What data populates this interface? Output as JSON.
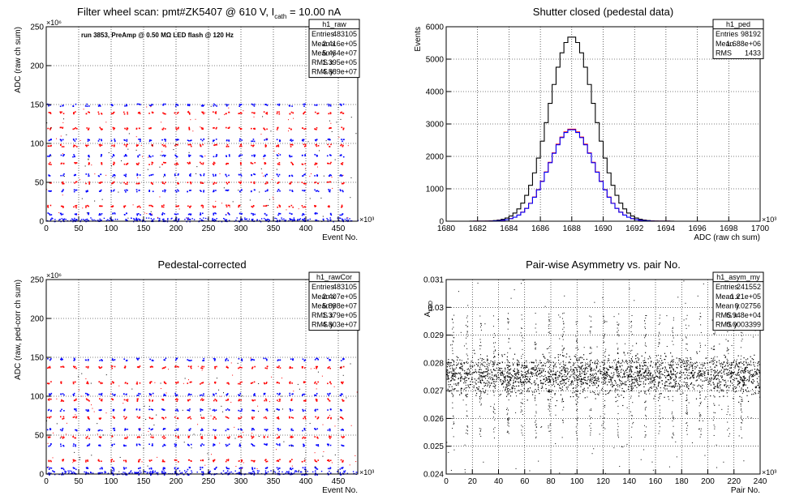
{
  "chart_data": [
    {
      "id": "raw",
      "type": "scatter",
      "title": "Filter wheel scan: pmt#ZK5407 @   610 V, I",
      "title_sub": "cath",
      "title_tail": " = 10.00 nA",
      "annotation": "run 3853, PreAmp @ 0.50 MΩ LED flash @  120 Hz",
      "xlabel": "Event No.",
      "ylabel": "ADC (raw ch sum)",
      "x_exponent": "×10³",
      "y_exponent": "×10⁶",
      "xlim": [
        0,
        480
      ],
      "ylim": [
        0,
        250
      ],
      "x_ticks": [
        "0",
        "50",
        "100",
        "150",
        "200",
        "250",
        "300",
        "350",
        "400",
        "450"
      ],
      "y_ticks": [
        "0",
        "50",
        "100",
        "150",
        "200",
        "250"
      ],
      "grid": true,
      "levels": [
        150,
        140,
        120,
        105,
        98,
        85,
        75,
        60,
        50,
        40,
        20,
        10,
        2
      ],
      "stats": {
        "title": "h1_raw",
        "rows": [
          [
            "Entries",
            "483105"
          ],
          [
            "Mean x",
            "2.416e+05"
          ],
          [
            "Mean y",
            "5.464e+07"
          ],
          [
            "RMS x",
            "1.395e+05"
          ],
          [
            "RMS y",
            "4.889e+07"
          ]
        ]
      }
    },
    {
      "id": "ped",
      "type": "line",
      "title": "Shutter closed (pedestal data)",
      "xlabel": "ADC (raw ch sum)",
      "ylabel": "Events",
      "x_exponent": "×10³",
      "xlim": [
        1680,
        1700
      ],
      "ylim": [
        0,
        6000
      ],
      "x_ticks": [
        "1680",
        "1682",
        "1684",
        "1686",
        "1688",
        "1690",
        "1692",
        "1694",
        "1696",
        "1698",
        "1700"
      ],
      "y_ticks": [
        "0",
        "1000",
        "2000",
        "3000",
        "4000",
        "5000",
        "6000"
      ],
      "grid": true,
      "series": [
        {
          "color": "#000000",
          "mean": 1688.0,
          "sigma": 1.45,
          "peak": 5700
        },
        {
          "color": "#ff0000",
          "mean": 1688.0,
          "sigma": 1.45,
          "peak": 2850
        },
        {
          "color": "#0000ff",
          "mean": 1688.0,
          "sigma": 1.45,
          "peak": 2830
        }
      ],
      "stats": {
        "title": "h1_ped",
        "rows": [
          [
            "Entries",
            "98192"
          ],
          [
            "Mean",
            "1.688e+06"
          ],
          [
            "RMS",
            "1433"
          ]
        ]
      }
    },
    {
      "id": "rawcor",
      "type": "scatter",
      "title": "Pedestal-corrected",
      "xlabel": "Event No.",
      "ylabel": "ADC (raw, ped-corr ch sum)",
      "x_exponent": "×10³",
      "y_exponent": "×10⁶",
      "xlim": [
        0,
        480
      ],
      "ylim": [
        0,
        250
      ],
      "x_ticks": [
        "0",
        "50",
        "100",
        "150",
        "200",
        "250",
        "300",
        "350",
        "400",
        "450"
      ],
      "y_ticks": [
        "0",
        "50",
        "100",
        "150",
        "200",
        "250"
      ],
      "grid": true,
      "levels": [
        148,
        138,
        118,
        103,
        96,
        83,
        73,
        58,
        48,
        38,
        18,
        8,
        1
      ],
      "stats": {
        "title": "h1_rawCor",
        "rows": [
          [
            "Entries",
            "483105"
          ],
          [
            "Mean x",
            "2.407e+05"
          ],
          [
            "Mean y",
            "5.898e+07"
          ],
          [
            "RMS x",
            "1.379e+05"
          ],
          [
            "RMS y",
            "4.803e+07"
          ]
        ]
      }
    },
    {
      "id": "asym",
      "type": "scatter",
      "title": "Pair-wise Asymmetry vs. pair No.",
      "xlabel": "Pair No.",
      "ylabel": "A",
      "ylabel_sub": "LED",
      "x_exponent": "×10³",
      "xlim": [
        0,
        240
      ],
      "ylim": [
        0.024,
        0.031
      ],
      "x_ticks": [
        "0",
        "20",
        "40",
        "60",
        "80",
        "100",
        "120",
        "140",
        "160",
        "180",
        "200",
        "220",
        "240"
      ],
      "y_ticks": [
        "0.024",
        "0.025",
        "0.026",
        "0.027",
        "0.028",
        "0.029",
        "0.03",
        "0.031"
      ],
      "grid": true,
      "center": 0.02756,
      "spread": 0.0003399,
      "stats": {
        "title": "h1_asym_my",
        "rows": [
          [
            "Entries",
            "241552"
          ],
          [
            "Mean x",
            "1.21e+05"
          ],
          [
            "Mean y",
            "0.02756"
          ],
          [
            "RMS x",
            "6.948e+04"
          ],
          [
            "RMS y",
            "0.0003399"
          ]
        ]
      }
    }
  ]
}
